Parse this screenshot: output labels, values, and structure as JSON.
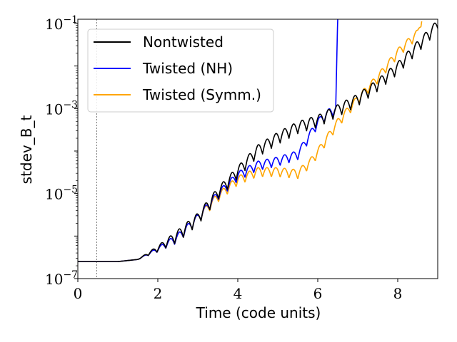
{
  "chart_data": {
    "type": "line",
    "xlabel": "Time (code units)",
    "ylabel": "stdev_B_t",
    "xlim": [
      0,
      9
    ],
    "ylim_log10": [
      -7,
      -0.9
    ],
    "yscale": "log",
    "grid": false,
    "legend_placement": "top-left",
    "x_ticks": [
      {
        "value": 0,
        "label": "0"
      },
      {
        "value": 2,
        "label": "2"
      },
      {
        "value": 4,
        "label": "4"
      },
      {
        "value": 6,
        "label": "6"
      },
      {
        "value": 8,
        "label": "8"
      }
    ],
    "y_ticks": [
      {
        "exp": -7,
        "base": "10",
        "sup": "−7"
      },
      {
        "exp": -5,
        "base": "10",
        "sup": "−5"
      },
      {
        "exp": -3,
        "base": "10",
        "sup": "−3"
      },
      {
        "exp": -1,
        "base": "10",
        "sup": "−1"
      }
    ],
    "vline_x": 0.47,
    "series": [
      {
        "name": "Nontwisted",
        "color": "#000000",
        "envelope_x": [
          0,
          0.5,
          1.0,
          1.5,
          2.0,
          2.5,
          3.0,
          3.5,
          4.0,
          4.5,
          5.0,
          5.5,
          6.0,
          6.5,
          7.0,
          7.5,
          8.0,
          8.5,
          9.0
        ],
        "envelope_log10": [
          -6.6,
          -6.6,
          -6.6,
          -6.55,
          -6.3,
          -6.0,
          -5.6,
          -5.0,
          -4.5,
          -4.0,
          -3.7,
          -3.45,
          -3.3,
          -3.05,
          -2.8,
          -2.45,
          -2.05,
          -1.55,
          -1.05
        ],
        "oscillation_amp": 0.28,
        "oscillation_period": 0.22
      },
      {
        "name": "Twisted (NH)",
        "color": "#0000ff",
        "envelope_x": [
          0,
          0.5,
          1.0,
          1.5,
          2.0,
          2.5,
          3.0,
          3.5,
          4.0,
          4.5,
          5.0,
          5.5,
          6.0,
          6.3,
          6.45,
          6.5
        ],
        "envelope_log10": [
          -6.6,
          -6.6,
          -6.6,
          -6.55,
          -6.32,
          -6.05,
          -5.6,
          -5.05,
          -4.6,
          -4.35,
          -4.25,
          -4.1,
          -3.35,
          -3.1,
          -3.05,
          -0.9
        ],
        "oscillation_amp": 0.22,
        "oscillation_period": 0.22,
        "terminates_at": 6.5
      },
      {
        "name": "Twisted (Symm.)",
        "color": "#ffa500",
        "envelope_x": [
          0,
          0.5,
          1.0,
          1.5,
          2.0,
          2.5,
          3.0,
          3.5,
          4.0,
          4.5,
          5.0,
          5.5,
          5.8,
          6.0,
          6.5,
          7.0,
          7.5,
          8.0,
          8.5,
          8.6
        ],
        "envelope_log10": [
          -6.6,
          -6.6,
          -6.6,
          -6.55,
          -6.32,
          -6.05,
          -5.6,
          -5.1,
          -4.7,
          -4.5,
          -4.5,
          -4.55,
          -4.3,
          -4.05,
          -3.35,
          -2.8,
          -2.3,
          -1.7,
          -1.25,
          -0.9
        ],
        "oscillation_amp": 0.22,
        "oscillation_period": 0.22
      }
    ]
  }
}
